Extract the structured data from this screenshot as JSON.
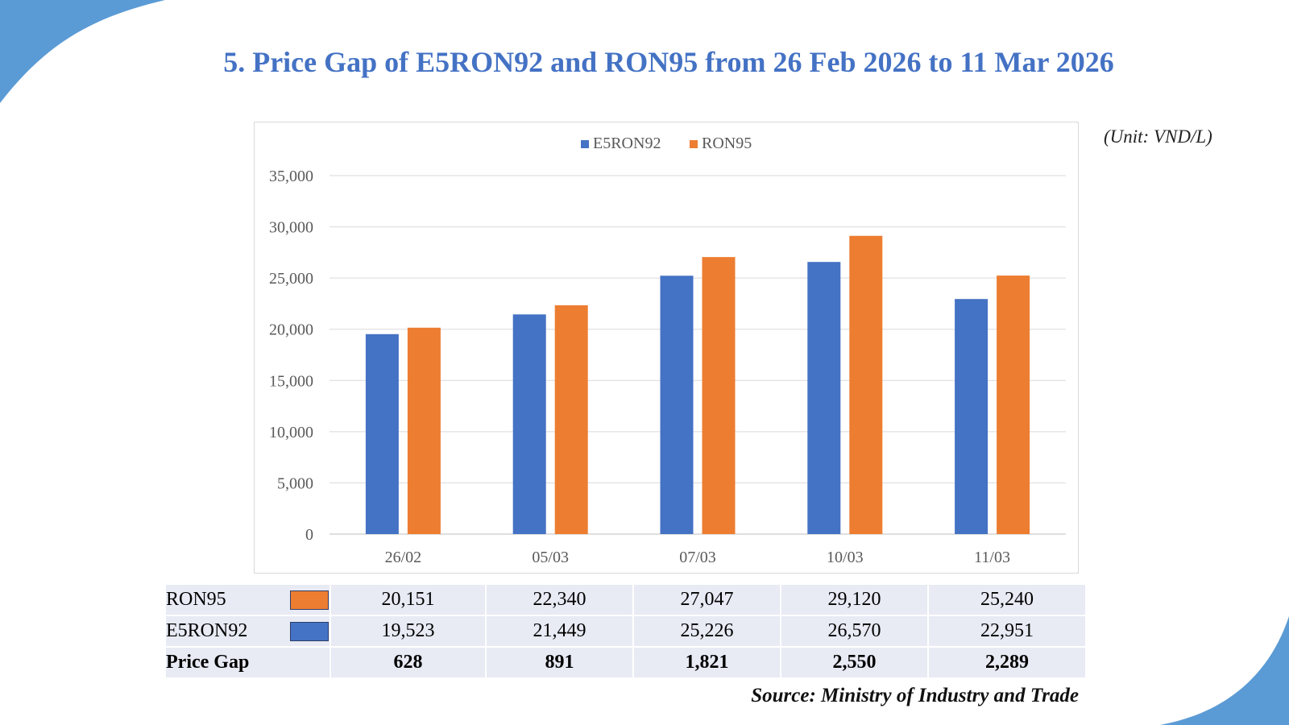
{
  "title": "5. Price Gap of E5RON92 and RON95 from 26 Feb 2026 to 11 Mar 2026",
  "unit": "(Unit: VND/L)",
  "source": "Source: Ministry of Industry and Trade",
  "colors": {
    "e5ron92": "#4472C4",
    "ron95": "#ED7D31",
    "accent": "#4472C4",
    "corner": "#5B9BD5"
  },
  "chart_data": {
    "type": "bar",
    "title": "",
    "xlabel": "",
    "ylabel": "",
    "categories": [
      "26/02",
      "05/03",
      "07/03",
      "10/03",
      "11/03"
    ],
    "series": [
      {
        "name": "E5RON92",
        "values": [
          19523,
          21449,
          25226,
          26570,
          22951
        ]
      },
      {
        "name": "RON95",
        "values": [
          20151,
          22340,
          27047,
          29120,
          25240
        ]
      }
    ],
    "ylim": [
      0,
      35000
    ],
    "yticks": [
      "0",
      "5,000",
      "10,000",
      "15,000",
      "20,000",
      "25,000",
      "30,000",
      "35,000"
    ],
    "grid": true,
    "legend": "top-center"
  },
  "table": {
    "rows": [
      {
        "label": "RON95",
        "values": [
          "20,151",
          "22,340",
          "27,047",
          "29,120",
          "25,240"
        ]
      },
      {
        "label": "E5RON92",
        "values": [
          "19,523",
          "21,449",
          "25,226",
          "26,570",
          "22,951"
        ]
      },
      {
        "label": "Price Gap",
        "values": [
          "628",
          "891",
          "1,821",
          "2,550",
          "2,289"
        ]
      }
    ]
  }
}
